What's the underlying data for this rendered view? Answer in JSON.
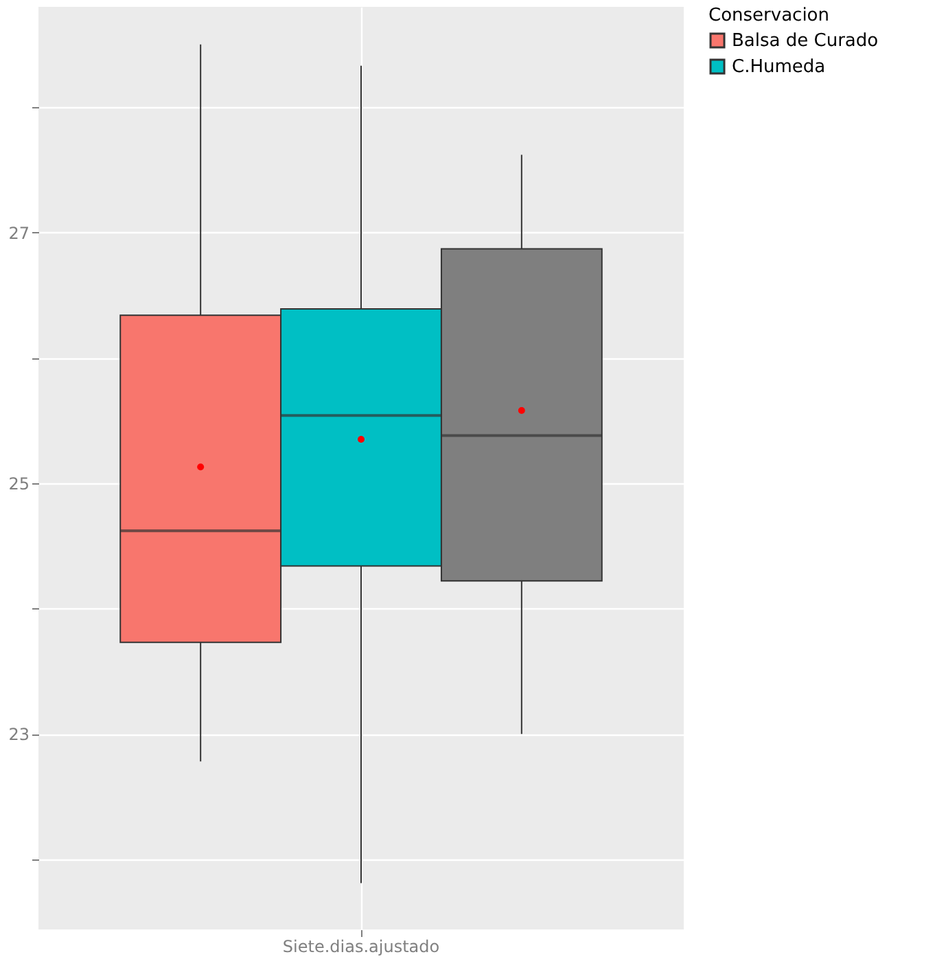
{
  "chart_data": {
    "type": "box",
    "categories": [
      "Siete.dias.ajustado"
    ],
    "legend_title": "Conservacion",
    "legend": "right",
    "ylim": [
      21.44,
      28.8
    ],
    "yticks": [
      {
        "value": 22,
        "label": null
      },
      23,
      {
        "value": 24,
        "label": null
      },
      25,
      {
        "value": 26,
        "label": null
      },
      27,
      {
        "value": 28,
        "label": null
      }
    ],
    "grid": true,
    "series": [
      {
        "name": "Balsa de Curado",
        "color": "#f8766d",
        "boxes": [
          {
            "low": 22.78,
            "q1": 23.73,
            "median": 24.62,
            "q3": 26.34,
            "high": 28.5,
            "mean": 25.13
          }
        ]
      },
      {
        "name": "C.Humeda",
        "color": "#00bfc4",
        "boxes": [
          {
            "low": 21.81,
            "q1": 24.34,
            "median": 25.54,
            "q3": 26.39,
            "high": 28.33,
            "mean": 25.35
          }
        ]
      },
      {
        "color": "#7f7f7f",
        "boxes": [
          {
            "low": 23.0,
            "q1": 24.22,
            "median": 25.38,
            "q3": 26.87,
            "high": 27.62,
            "mean": 25.58
          }
        ]
      }
    ]
  }
}
